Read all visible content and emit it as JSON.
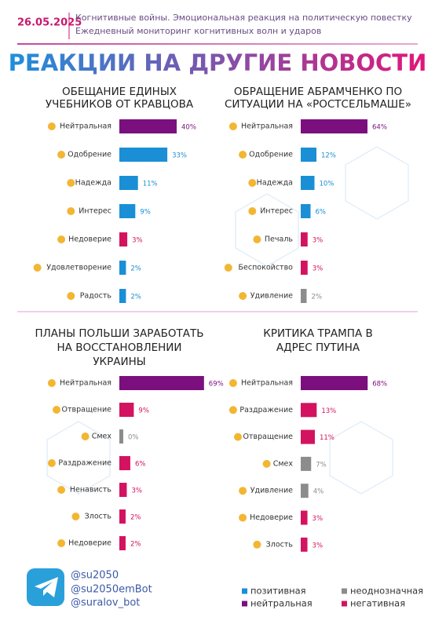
{
  "header": {
    "date": "26.05.2025",
    "subtitle_lines": [
      "Когнитивные войны. Эмоциональная реакция на политическую повестку",
      "Ежедневный мониторинг когнитивных волн и ударов"
    ]
  },
  "title": "РЕАКЦИИ НА ДРУГИЕ НОВОСТИ",
  "chart_data": [
    {
      "type": "bar",
      "title_lines": [
        "ОБЕЩАНИЕ ЕДИНЫХ",
        "УЧЕБНИКОВ ОТ КРАВЦОВА"
      ],
      "categories": [
        "Нейтральная",
        "Одобрение",
        "Надежда",
        "Интерес",
        "Недоверие",
        "Удовлетворение",
        "Радость"
      ],
      "values": [
        40,
        33,
        11,
        9,
        3,
        2,
        2
      ],
      "value_labels": [
        "40%",
        "33%",
        "11%",
        "9%",
        "3%",
        "2%",
        "2%"
      ],
      "colors": [
        "#7b0f7e",
        "#1a8fd6",
        "#1a8fd6",
        "#1a8fd6",
        "#d3135f",
        "#1a8fd6",
        "#1a8fd6"
      ]
    },
    {
      "type": "bar",
      "title_lines": [
        "ОБРАЩЕНИЕ АБРАМЧЕНКО ПО",
        "СИТУАЦИИ НА «РОСТСЕЛЬМАШЕ»"
      ],
      "categories": [
        "Нейтральная",
        "Одобрение",
        "Надежда",
        "Интерес",
        "Печаль",
        "Беспокойство",
        "Удивление"
      ],
      "values": [
        64,
        12,
        10,
        6,
        3,
        3,
        2
      ],
      "value_labels": [
        "64%",
        "12%",
        "10%",
        "6%",
        "3%",
        "3%",
        "2%"
      ],
      "colors": [
        "#7b0f7e",
        "#1a8fd6",
        "#1a8fd6",
        "#1a8fd6",
        "#d3135f",
        "#d3135f",
        "#8c8c8c"
      ]
    },
    {
      "type": "bar",
      "title_lines": [
        "ПЛАНЫ ПОЛЬШИ ЗАРАБОТАТЬ",
        "НА ВОССТАНОВЛЕНИИ",
        "УКРАИНЫ"
      ],
      "categories": [
        "Нейтральная",
        "Отвращение",
        "Смех",
        "Раздражение",
        "Ненависть",
        "Злость",
        "Недоверие"
      ],
      "values": [
        69,
        9,
        0,
        6,
        3,
        2,
        2
      ],
      "value_labels": [
        "69%",
        "9%",
        "0%",
        "6%",
        "3%",
        "2%",
        "2%"
      ],
      "colors": [
        "#7b0f7e",
        "#d3135f",
        "#8c8c8c",
        "#d3135f",
        "#d3135f",
        "#d3135f",
        "#d3135f"
      ]
    },
    {
      "type": "bar",
      "title_lines": [
        "КРИТИКА ТРАМПА В",
        "АДРЕС ПУТИНА"
      ],
      "categories": [
        "Нейтральная",
        "Раздражение",
        "Отвращение",
        "Смех",
        "Удивление",
        "Недоверие",
        "Злость"
      ],
      "values": [
        68,
        13,
        11,
        7,
        4,
        3,
        3
      ],
      "value_labels": [
        "68%",
        "13%",
        "11%",
        "7%",
        "4%",
        "3%",
        "3%"
      ],
      "colors": [
        "#7b0f7e",
        "#d3135f",
        "#d3135f",
        "#8c8c8c",
        "#8c8c8c",
        "#d3135f",
        "#d3135f"
      ]
    }
  ],
  "footer": {
    "handles": [
      "@su2050",
      "@su2050emBot",
      "@suralov_bot"
    ]
  },
  "legend": [
    {
      "name": "позитивная",
      "color": "#1a8fd6"
    },
    {
      "name": "неоднозначная",
      "color": "#8c8c8c"
    },
    {
      "name": "нейтральная",
      "color": "#7b0f7e"
    },
    {
      "name": "негативная",
      "color": "#d3135f"
    }
  ]
}
